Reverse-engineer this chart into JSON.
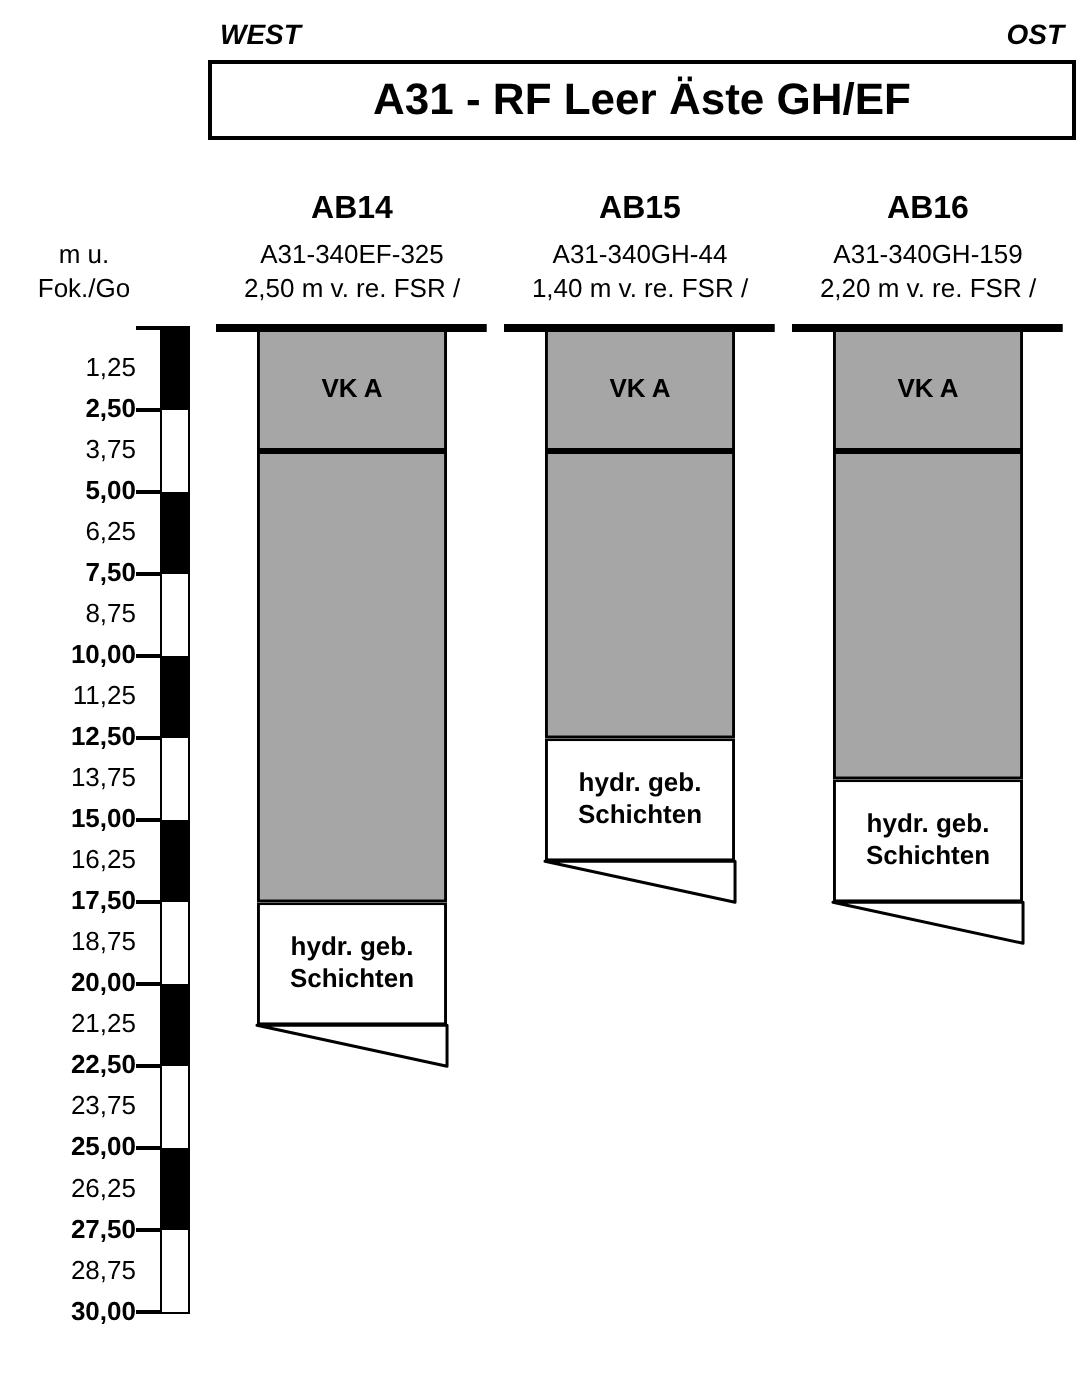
{
  "chart_data": {
    "type": "bar",
    "title": "A31 - RF Leer Äste GH/EF",
    "ylabel": "m u. Fok./Go",
    "categories": [
      "AB14",
      "AB15",
      "AB16"
    ],
    "stacked": true,
    "series": [
      {
        "name": "VK A",
        "color": "#a6a6a6",
        "values": [
          3.75,
          3.75,
          3.75
        ]
      },
      {
        "color": "#a6a6a6",
        "values": [
          13.75,
          8.75,
          10
        ]
      },
      {
        "name": "hydr. geb. Schichten",
        "color": "#ffffff",
        "values": [
          3.75,
          3.75,
          3.75
        ]
      },
      {
        "color": "#ffffff",
        "values": [
          1.25,
          1.25,
          1.25
        ]
      }
    ],
    "ylim": [
      30,
      0
    ],
    "yticks": [
      {
        "value": 1.25,
        "label": "1,25"
      },
      {
        "value": 2.5,
        "label": "2,50"
      },
      {
        "value": 3.75,
        "label": "3,75"
      },
      {
        "value": 5,
        "label": "5,00"
      },
      {
        "value": 6.25,
        "label": "6,25"
      },
      {
        "value": 7.5,
        "label": "7,50"
      },
      {
        "value": 8.75,
        "label": "8,75"
      },
      {
        "value": 10,
        "label": "10,00"
      },
      {
        "value": 11.25,
        "label": "11,25"
      },
      {
        "value": 12.5,
        "label": "12,50"
      },
      {
        "value": 13.75,
        "label": "13,75"
      },
      {
        "value": 15,
        "label": "15,00"
      },
      {
        "value": 16.25,
        "label": "16,25"
      },
      {
        "value": 17.5,
        "label": "17,50"
      },
      {
        "value": 18.75,
        "label": "18,75"
      },
      {
        "value": 20,
        "label": "20,00"
      },
      {
        "value": 21.25,
        "label": "21,25"
      },
      {
        "value": 22.5,
        "label": "22,50"
      },
      {
        "value": 23.75,
        "label": "23,75"
      },
      {
        "value": 25,
        "label": "25,00"
      },
      {
        "value": 26.25,
        "label": "26,25"
      },
      {
        "value": 27.5,
        "label": "27,50"
      },
      {
        "value": 28.75,
        "label": "28,75"
      },
      {
        "value": 30,
        "label": "30,00"
      }
    ],
    "annotations": [
      "WEST",
      "OST",
      "A31-340EF-325",
      "2,50 m v. re. FSR /",
      "A31-340GH-44",
      "1,40 m v. re. FSR /",
      "A31-340GH-159",
      "2,20 m v. re. FSR /"
    ],
    "grid": false,
    "legend": false
  }
}
